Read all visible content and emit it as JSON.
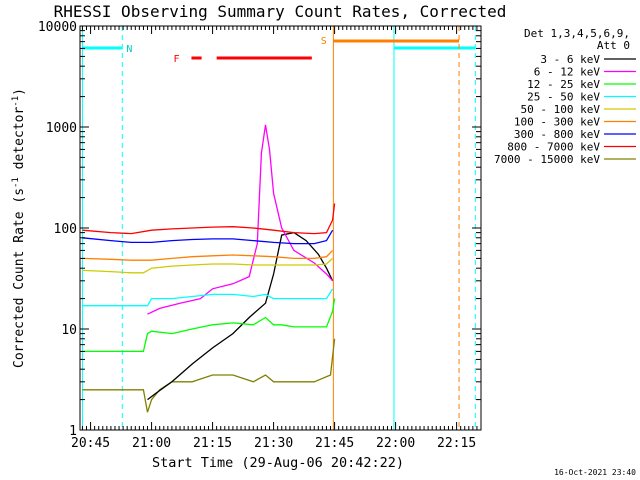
{
  "chart_data": {
    "type": "line",
    "title": "RHESSI Observing Summary Count Rates, Corrected",
    "xlabel": "Start Time (29-Aug-06 20:42:22)",
    "ylabel_main": "Corrected Count Rate (s",
    "ylabel_sup1": "-1",
    "ylabel_mid": " detector",
    "ylabel_sup2": "-1",
    "ylabel_end": ")",
    "yscale": "log",
    "ylim": [
      1,
      10000
    ],
    "xlim_minutes": [
      42.4,
      141
    ],
    "x_tick_labels": [
      "20:45",
      "21:00",
      "21:15",
      "21:30",
      "21:45",
      "22:00",
      "22:15"
    ],
    "x_tick_minutes": [
      45,
      60,
      75,
      90,
      105,
      120,
      135
    ],
    "y_tick_labels": [
      "1",
      "10",
      "100",
      "1000",
      "10000"
    ],
    "y_tick_values": [
      1,
      10,
      100,
      1000,
      10000
    ],
    "legend_header": [
      "Det 1,3,4,5,6,9,",
      "Att 0"
    ],
    "series": [
      {
        "name": "3 - 6 keV",
        "color": "#000000",
        "x": [
          59,
          61,
          65,
          70,
          75,
          80,
          84,
          88,
          90,
          92,
          95,
          98,
          101,
          103,
          104.5
        ],
        "y": [
          2.0,
          2.3,
          3.0,
          4.5,
          6.5,
          9.0,
          13,
          18,
          35,
          85,
          90,
          75,
          55,
          40,
          30
        ]
      },
      {
        "name": "6 - 12 keV",
        "color": "#ff00ff",
        "x": [
          59,
          62,
          67,
          72,
          75,
          80,
          84,
          86,
          87,
          88,
          89,
          90,
          92,
          95,
          100,
          103,
          104.5
        ],
        "y": [
          14,
          16,
          18,
          20,
          25,
          28,
          33,
          70,
          550,
          1050,
          600,
          220,
          100,
          60,
          45,
          35,
          30
        ]
      },
      {
        "name": "12 - 25 keV",
        "color": "#00ff00",
        "x": [
          43,
          58,
          59,
          60,
          65,
          70,
          75,
          80,
          85,
          88,
          90,
          92,
          95,
          100,
          103,
          104.5,
          105
        ],
        "y": [
          6.0,
          6.0,
          9.0,
          9.5,
          9.0,
          10,
          11,
          11.5,
          11,
          13,
          11,
          11,
          10.5,
          10.5,
          10.5,
          15,
          20
        ]
      },
      {
        "name": "25 - 50 keV",
        "color": "#00ffff",
        "x": [
          43,
          58,
          59,
          60,
          65,
          70,
          75,
          80,
          85,
          88,
          90,
          95,
          100,
          103,
          104.5
        ],
        "y": [
          17,
          17,
          17,
          20,
          20,
          21,
          22,
          22,
          21,
          22,
          20,
          20,
          20,
          20,
          25
        ]
      },
      {
        "name": "50 - 100 keV",
        "color": "#cccc00",
        "x": [
          43,
          50,
          55,
          58,
          60,
          65,
          70,
          75,
          80,
          85,
          90,
          95,
          100,
          103,
          104.5
        ],
        "y": [
          38,
          37,
          36,
          36,
          40,
          42,
          43,
          44,
          44,
          43,
          43,
          43,
          43,
          44,
          50
        ]
      },
      {
        "name": "100 - 300 keV",
        "color": "#ff8000",
        "x": [
          43,
          50,
          55,
          60,
          65,
          70,
          75,
          80,
          85,
          90,
          95,
          100,
          103,
          104.5
        ],
        "y": [
          50,
          49,
          48,
          48,
          50,
          52,
          53,
          54,
          53,
          52,
          50,
          50,
          52,
          60
        ]
      },
      {
        "name": "300 - 800 keV",
        "color": "#0000ff",
        "x": [
          43,
          50,
          55,
          60,
          65,
          70,
          75,
          80,
          85,
          90,
          95,
          100,
          103,
          104.5
        ],
        "y": [
          80,
          75,
          72,
          72,
          75,
          77,
          78,
          78,
          75,
          72,
          70,
          70,
          75,
          95
        ]
      },
      {
        "name": "800 - 7000 keV",
        "color": "#ff0000",
        "x": [
          43,
          50,
          55,
          60,
          65,
          70,
          75,
          80,
          85,
          90,
          95,
          100,
          103,
          104.5,
          105
        ],
        "y": [
          95,
          90,
          88,
          95,
          98,
          100,
          102,
          103,
          100,
          95,
          90,
          88,
          90,
          120,
          175
        ]
      },
      {
        "name": "7000 - 15000 keV",
        "color": "#808000",
        "x": [
          43,
          50,
          58,
          59,
          60,
          62,
          65,
          70,
          75,
          80,
          85,
          88,
          90,
          95,
          100,
          104,
          105
        ],
        "y": [
          2.5,
          2.5,
          2.5,
          1.5,
          2.0,
          2.5,
          3.0,
          3.0,
          3.5,
          3.5,
          3.0,
          3.5,
          3.0,
          3.0,
          3.0,
          3.5,
          8.0
        ]
      }
    ],
    "annotations": [
      {
        "label": "N",
        "color": "#00c8c8"
      },
      {
        "label": "F",
        "color": "#ff0000"
      },
      {
        "label": "S",
        "color": "#ff8000"
      }
    ],
    "timestamp": "16-Oct-2021 23:40"
  },
  "colors": {
    "night": "#00ffff",
    "flare": "#ff0000",
    "saa": "#ff8000"
  }
}
